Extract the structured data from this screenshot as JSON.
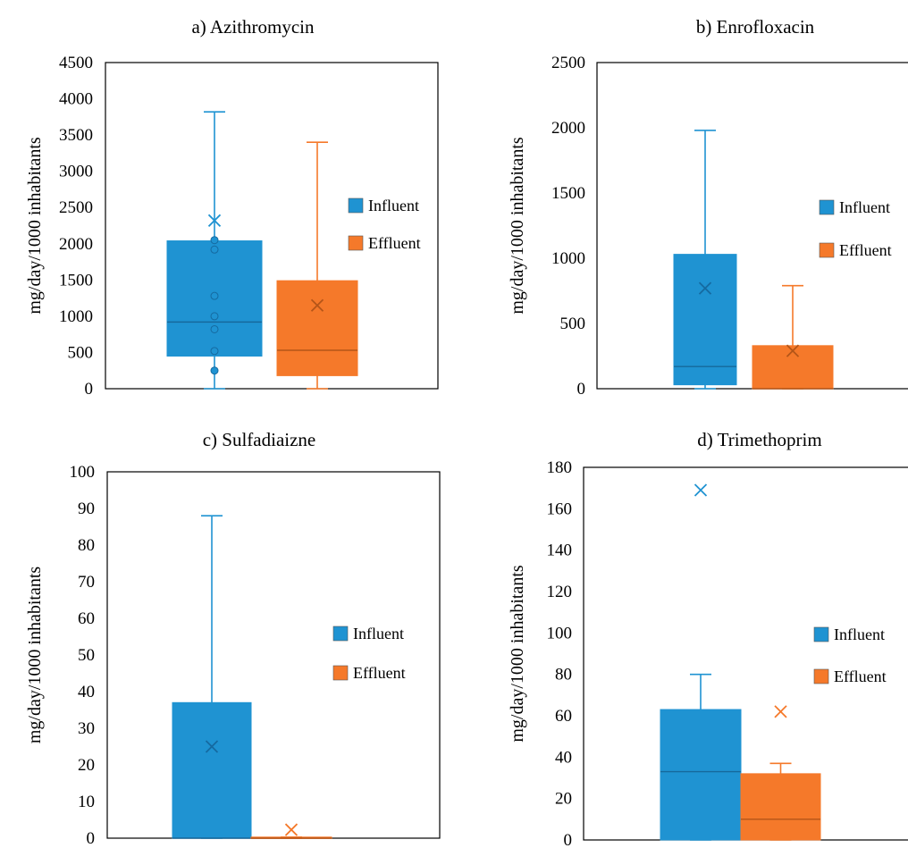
{
  "colors": {
    "influent": "#1f93d2",
    "effluent": "#f5792a",
    "axis": "#000000",
    "text": "#000000"
  },
  "chart_data": [
    {
      "type": "box",
      "title": "a)   Azithromycin",
      "ylabel": "mg/day/1000 inhabitants",
      "ylim": [
        0,
        4500
      ],
      "yticks": [
        0,
        500,
        1000,
        1500,
        2000,
        2500,
        3000,
        3500,
        4000,
        4500
      ],
      "legend": [
        "Influent",
        "Effluent"
      ],
      "series": [
        {
          "name": "Influent",
          "whisker_low": 0,
          "q1": 450,
          "median": 920,
          "q3": 2040,
          "whisker_high": 3820,
          "mean": 2320,
          "points": [
            250,
            520,
            820,
            1000,
            1280,
            1920,
            2050
          ]
        },
        {
          "name": "Effluent",
          "whisker_low": 0,
          "q1": 180,
          "median": 530,
          "q3": 1490,
          "whisker_high": 3400,
          "mean": 1150,
          "points": []
        }
      ]
    },
    {
      "type": "box",
      "title": "b)   Enrofloxacin",
      "ylabel": "mg/day/1000 inhabitants",
      "ylim": [
        0,
        2500
      ],
      "yticks": [
        0,
        500,
        1000,
        1500,
        2000,
        2500
      ],
      "legend": [
        "Influent",
        "Effluent"
      ],
      "series": [
        {
          "name": "Influent",
          "whisker_low": 0,
          "q1": 30,
          "median": 170,
          "q3": 1030,
          "whisker_high": 1980,
          "mean": 770,
          "points": []
        },
        {
          "name": "Effluent",
          "whisker_low": 0,
          "q1": 0,
          "median": 0,
          "q3": 330,
          "whisker_high": 790,
          "mean": 290,
          "points": []
        }
      ]
    },
    {
      "type": "box",
      "title": "c)   Sulfadiaizne",
      "ylabel": "mg/day/1000 inhabitants",
      "ylim": [
        0,
        100
      ],
      "yticks": [
        0,
        10,
        20,
        30,
        40,
        50,
        60,
        70,
        80,
        90,
        100
      ],
      "legend": [
        "Influent",
        "Effluent"
      ],
      "series": [
        {
          "name": "Influent",
          "whisker_low": 0,
          "q1": 0,
          "median": 0,
          "q3": 37,
          "whisker_high": 88,
          "mean": 25,
          "points": []
        },
        {
          "name": "Effluent",
          "whisker_low": 0,
          "q1": 0,
          "median": 0,
          "q3": 0.3,
          "whisker_high": 0.3,
          "mean": 2.3,
          "points": []
        }
      ]
    },
    {
      "type": "box",
      "title": "d)   Trimethoprim",
      "ylabel": "mg/day/1000 inhabitants",
      "ylim": [
        0,
        180
      ],
      "yticks": [
        0,
        20,
        40,
        60,
        80,
        100,
        120,
        140,
        160,
        180
      ],
      "legend": [
        "Influent",
        "Effluent"
      ],
      "series": [
        {
          "name": "Influent",
          "whisker_low": 0,
          "q1": 0,
          "median": 33,
          "q3": 63,
          "whisker_high": 80,
          "mean": 169,
          "points": []
        },
        {
          "name": "Effluent",
          "whisker_low": 0,
          "q1": 0,
          "median": 10,
          "q3": 32,
          "whisker_high": 37,
          "mean": 62,
          "points": []
        }
      ]
    }
  ]
}
